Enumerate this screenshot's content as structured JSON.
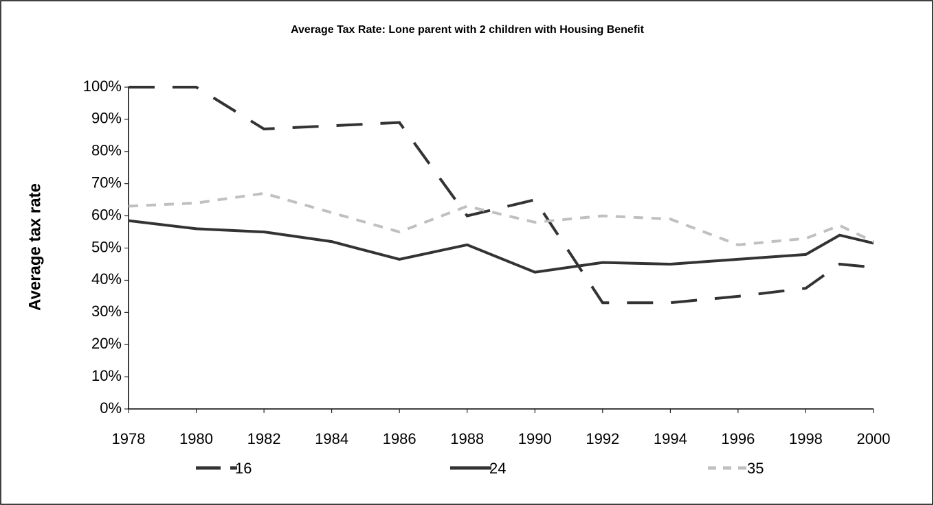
{
  "chart_data": {
    "type": "line",
    "title": "Average Tax Rate: Lone parent with 2 children with Housing Benefit",
    "y_label": "Average tax rate",
    "x": [
      1978,
      1980,
      1982,
      1984,
      1986,
      1988,
      1990,
      1992,
      1994,
      1996,
      1998,
      1999,
      2000
    ],
    "series": [
      {
        "name": "16",
        "color": "#333333",
        "dash": "long",
        "values": [
          100,
          100,
          87,
          88,
          89,
          60,
          65,
          33,
          33,
          35,
          37.5,
          45,
          44
        ]
      },
      {
        "name": "24",
        "color": "#333333",
        "dash": "solid",
        "values": [
          58.5,
          56,
          55,
          52,
          46.5,
          51,
          42.5,
          45.5,
          45,
          46.5,
          48,
          54,
          51.5
        ]
      },
      {
        "name": "35",
        "color": "#c0c0c0",
        "dash": "short",
        "values": [
          63,
          64,
          67,
          61,
          55,
          63,
          58,
          60,
          59,
          51,
          53,
          57,
          52
        ]
      }
    ],
    "xlim": [
      1978,
      2000
    ],
    "xticks": [
      1978,
      1980,
      1982,
      1984,
      1986,
      1988,
      1990,
      1992,
      1994,
      1996,
      1998,
      2000
    ],
    "ylim": [
      0,
      100
    ],
    "yticks": [
      {
        "value": 0,
        "label": "0%"
      },
      {
        "value": 10,
        "label": "10%"
      },
      {
        "value": 20,
        "label": "20%"
      },
      {
        "value": 30,
        "label": "30%"
      },
      {
        "value": 40,
        "label": "40%"
      },
      {
        "value": 50,
        "label": "50%"
      },
      {
        "value": 60,
        "label": "60%"
      },
      {
        "value": 70,
        "label": "70%"
      },
      {
        "value": 80,
        "label": "80%"
      },
      {
        "value": 90,
        "label": "90%"
      },
      {
        "value": 100,
        "label": "100%"
      }
    ],
    "grid": false,
    "legend": "bottom"
  }
}
